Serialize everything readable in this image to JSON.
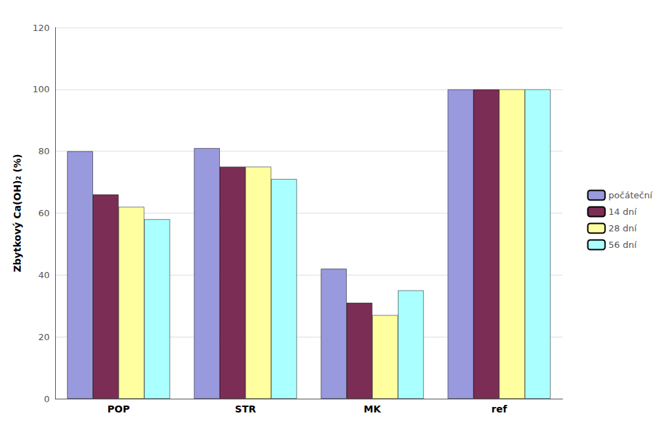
{
  "chart_data": {
    "type": "bar",
    "categories": [
      "POP",
      "STR",
      "MK",
      "ref"
    ],
    "series": [
      {
        "name": "počáteční",
        "color": "#9999dd",
        "values": [
          80,
          81,
          42,
          100
        ]
      },
      {
        "name": "14 dní",
        "color": "#7b2d55",
        "values": [
          66,
          75,
          31,
          100
        ]
      },
      {
        "name": "28 dní",
        "color": "#ffffa0",
        "values": [
          62,
          75,
          27,
          100
        ]
      },
      {
        "name": "56 dní",
        "color": "#aaffff",
        "values": [
          58,
          71,
          35,
          100
        ]
      }
    ],
    "ylabel": "Zbytkový Ca(OH)₂ (%)",
    "ylim": [
      0,
      120
    ],
    "yticks": [
      0,
      20,
      40,
      60,
      80,
      100,
      120
    ],
    "grid": true,
    "legend": "right"
  }
}
